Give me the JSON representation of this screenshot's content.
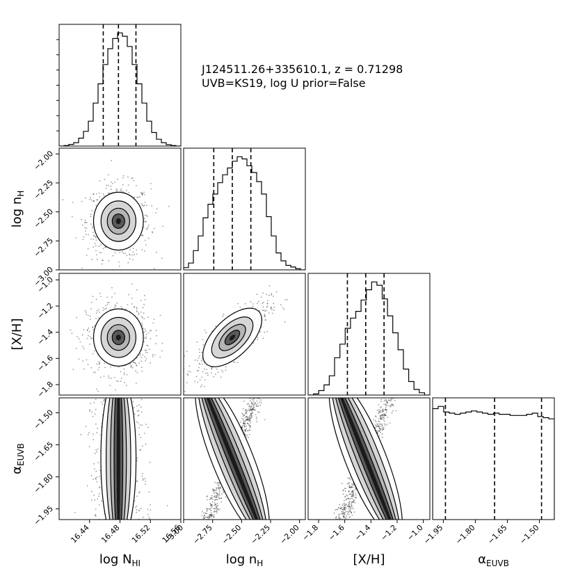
{
  "annotation": {
    "line1": "J124511.26+335610.1, z = 0.71298",
    "line2": "UVB=KS19, log U prior=False"
  },
  "colors": {
    "ink": "#000000",
    "fill_dark": "#1a1a1a",
    "fill_mid": "#5a5a5a",
    "fill_light": "#b4b4b4",
    "background": "#ffffff"
  },
  "chart_data": {
    "type": "corner",
    "parameters": [
      {
        "name": "log N_HI",
        "label": "log N",
        "label_sub": "HI",
        "range": [
          16.4,
          16.56
        ],
        "ticks": [
          16.44,
          16.48,
          16.52,
          16.56
        ],
        "tick_labels": [
          "16.44",
          "16.48",
          "16.52",
          "16.56"
        ],
        "median": 16.478,
        "q16": 16.458,
        "q84": 16.501,
        "sigma": 0.021
      },
      {
        "name": "log n_H",
        "label": "log n",
        "label_sub": "H",
        "range": [
          -3.0,
          -1.95
        ],
        "ticks": [
          -3.0,
          -2.75,
          -2.5,
          -2.25,
          -2.0
        ],
        "tick_labels": [
          "−3.00",
          "−2.75",
          "−2.50",
          "−2.25",
          "−2.00"
        ],
        "median": -2.58,
        "q16": -2.74,
        "q84": -2.42,
        "sigma": 0.16
      },
      {
        "name": "[X/H]",
        "label": "[X/H]",
        "label_sub": "",
        "range": [
          -1.88,
          -0.95
        ],
        "ticks": [
          -1.8,
          -1.6,
          -1.4,
          -1.2,
          -1.0
        ],
        "tick_labels": [
          "−1.8",
          "−1.6",
          "−1.4",
          "−1.2",
          "−1.0"
        ],
        "median": -1.44,
        "q16": -1.58,
        "q84": -1.3,
        "sigma": 0.14
      },
      {
        "name": "alpha_EUVB",
        "label": "α",
        "label_sub": "EUVB",
        "range": [
          -2.0,
          -1.43
        ],
        "ticks": [
          -1.95,
          -1.8,
          -1.65,
          -1.5
        ],
        "tick_labels": [
          "−1.95",
          "−1.80",
          "−1.65",
          "−1.50"
        ],
        "median": -1.71,
        "q16": -1.94,
        "q84": -1.49,
        "sigma": 0.29,
        "uniform": true
      }
    ],
    "histograms": {
      "log N_HI": [
        0.0,
        0.005,
        0.015,
        0.03,
        0.07,
        0.13,
        0.22,
        0.38,
        0.55,
        0.72,
        0.86,
        0.95,
        1.0,
        0.97,
        0.88,
        0.72,
        0.55,
        0.38,
        0.22,
        0.12,
        0.06,
        0.03,
        0.012,
        0.005,
        0.0
      ],
      "log n_H": [
        0.02,
        0.06,
        0.17,
        0.3,
        0.46,
        0.58,
        0.67,
        0.77,
        0.84,
        0.9,
        0.96,
        1.0,
        0.98,
        0.92,
        0.86,
        0.78,
        0.67,
        0.47,
        0.3,
        0.15,
        0.08,
        0.04,
        0.025,
        0.01,
        0.0
      ],
      "[X/H]": [
        0.0,
        0.01,
        0.04,
        0.09,
        0.17,
        0.33,
        0.45,
        0.59,
        0.68,
        0.74,
        0.84,
        0.93,
        1.0,
        0.97,
        0.85,
        0.7,
        0.55,
        0.4,
        0.23,
        0.12,
        0.05,
        0.02,
        0.0
      ],
      "alpha_EUVB": [
        0.98,
        1.0,
        0.95,
        0.94,
        0.93,
        0.94,
        0.95,
        0.96,
        0.95,
        0.94,
        0.93,
        0.94,
        0.93,
        0.93,
        0.92,
        0.92,
        0.92,
        0.93,
        0.94,
        0.91,
        0.9,
        0.89
      ]
    },
    "correlations": {
      "1,0": 0.0,
      "2,0": 0.0,
      "2,1": 0.78,
      "3,0": 0.0,
      "3,1": 0.95,
      "3,2": 0.95
    },
    "grid": false,
    "quantile_lines": "dashed"
  }
}
